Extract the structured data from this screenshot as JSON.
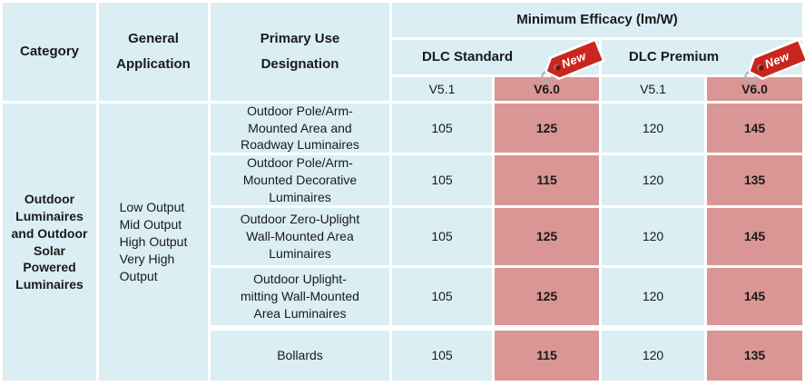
{
  "header": {
    "category": "Category",
    "general_application": "General Application",
    "primary_use": "Primary Use\nDesignation",
    "efficacy_title": "Minimum Efficacy (lm/W)",
    "groups": [
      {
        "label": "DLC Standard",
        "badge": "New"
      },
      {
        "label": "DLC Premium",
        "badge": "New"
      }
    ],
    "version_cols": [
      "V5.1",
      "V6.0",
      "V5.1",
      "V6.0"
    ]
  },
  "body": {
    "category": "Outdoor\nLuminaires\nand Outdoor\nSolar Powered\nLuminaires",
    "general_application": "Low Output\nMid Output\nHigh Output\nVery High\nOutput",
    "rows": [
      {
        "primary_use": "Outdoor Pole/Arm-\nMounted Area and\nRoadway Luminaires",
        "values": [
          "105",
          "125",
          "120",
          "145"
        ]
      },
      {
        "primary_use": "Outdoor Pole/Arm-\nMounted Decorative\nLuminaires",
        "values": [
          "105",
          "115",
          "120",
          "135"
        ]
      },
      {
        "primary_use": "Outdoor Zero-Uplight\nWall-Mounted Area\nLuminaires",
        "values": [
          "105",
          "125",
          "120",
          "145"
        ]
      },
      {
        "primary_use": "Outdoor Uplight-\nmitting Wall-Mounted\nArea Luminaires",
        "values": [
          "105",
          "125",
          "120",
          "145"
        ]
      },
      {
        "primary_use": "Bollards",
        "values": [
          "105",
          "115",
          "120",
          "135"
        ]
      }
    ]
  },
  "colors": {
    "cell_blue": "#daeef3",
    "cell_pink": "#d99694",
    "tag_red": "#c9271d",
    "text": "#1a1a1a"
  },
  "chart_data": {
    "type": "table",
    "title": "Minimum Efficacy (lm/W)",
    "columns": [
      "Category",
      "General Application",
      "Primary Use Designation",
      "DLC Standard V5.1",
      "DLC Standard V6.0",
      "DLC Premium V5.1",
      "DLC Premium V6.0"
    ],
    "rows": [
      [
        "Outdoor Luminaires and Outdoor Solar Powered Luminaires",
        "Low Output / Mid Output / High Output / Very High Output",
        "Outdoor Pole/Arm-Mounted Area and Roadway Luminaires",
        105,
        125,
        120,
        145
      ],
      [
        "",
        "",
        "Outdoor Pole/Arm-Mounted Decorative Luminaires",
        105,
        115,
        120,
        135
      ],
      [
        "",
        "",
        "Outdoor Zero-Uplight Wall-Mounted Area Luminaires",
        105,
        125,
        120,
        145
      ],
      [
        "",
        "",
        "Outdoor Uplight-mitting Wall-Mounted Area Luminaires",
        105,
        125,
        120,
        145
      ],
      [
        "",
        "",
        "Bollards",
        105,
        115,
        120,
        135
      ]
    ]
  }
}
